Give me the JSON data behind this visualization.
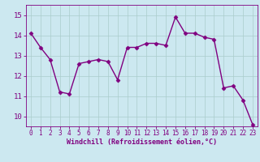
{
  "x": [
    0,
    1,
    2,
    3,
    4,
    5,
    6,
    7,
    8,
    9,
    10,
    11,
    12,
    13,
    14,
    15,
    16,
    17,
    18,
    19,
    20,
    21,
    22,
    23
  ],
  "y": [
    14.1,
    13.4,
    12.8,
    11.2,
    11.1,
    12.6,
    12.7,
    12.8,
    12.7,
    11.8,
    13.4,
    13.4,
    13.6,
    13.6,
    13.5,
    14.9,
    14.1,
    14.1,
    13.9,
    13.8,
    11.4,
    11.5,
    10.8,
    9.6
  ],
  "line_color": "#800080",
  "marker_color": "#800080",
  "bg_color": "#cce8f0",
  "grid_color": "#aacccc",
  "xlabel": "Windchill (Refroidissement éolien,°C)",
  "xlabel_color": "#800080",
  "tick_color": "#800080",
  "ylim": [
    9.5,
    15.5
  ],
  "yticks": [
    10,
    11,
    12,
    13,
    14,
    15
  ],
  "xticks": [
    0,
    1,
    2,
    3,
    4,
    5,
    6,
    7,
    8,
    9,
    10,
    11,
    12,
    13,
    14,
    15,
    16,
    17,
    18,
    19,
    20,
    21,
    22,
    23
  ],
  "linewidth": 1.0,
  "markersize": 2.5
}
